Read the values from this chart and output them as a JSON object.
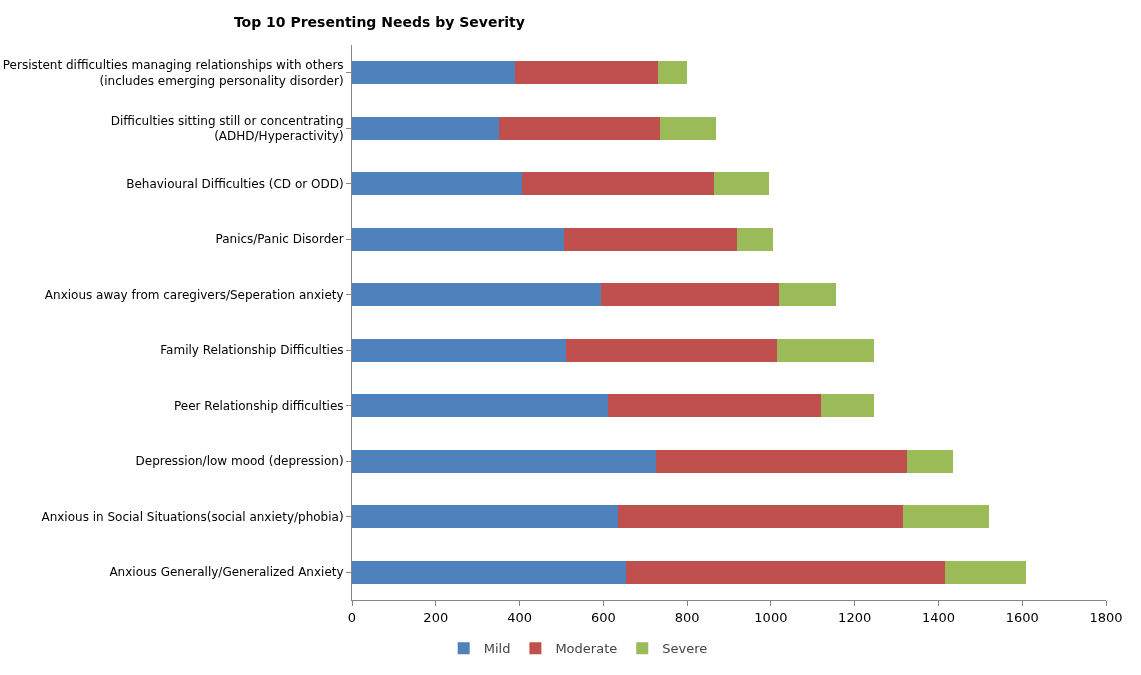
{
  "chart_data": {
    "type": "bar",
    "orientation": "horizontal",
    "stacked": true,
    "title": "Top 10 Presenting Needs by Severity",
    "categories": [
      "Persistent difficulties managing relationships with others\n(includes emerging personality disorder)",
      "Difficulties sitting still or concentrating\n(ADHD/Hyperactivity)",
      "Behavioural Difficulties (CD or ODD)",
      "Panics/Panic Disorder",
      "Anxious away from caregivers/Seperation anxiety",
      "Family Relationship Difficulties",
      "Peer Relationship difficulties",
      "Depression/low mood (depression)",
      "Anxious in Social Situations(social anxiety/phobia)",
      "Anxious Generally/Generalized Anxiety"
    ],
    "series": [
      {
        "name": "Mild",
        "color": "#4f81bd",
        "values": [
          390,
          350,
          405,
          505,
          595,
          510,
          610,
          725,
          635,
          655
        ]
      },
      {
        "name": "Moderate",
        "color": "#c0504d",
        "values": [
          340,
          385,
          460,
          415,
          425,
          505,
          510,
          600,
          680,
          760
        ]
      },
      {
        "name": "Severe",
        "color": "#9bbb59",
        "values": [
          70,
          135,
          130,
          85,
          135,
          230,
          125,
          110,
          205,
          195
        ]
      }
    ],
    "xlim": [
      0,
      1800
    ],
    "xticks": [
      0,
      200,
      400,
      600,
      800,
      1000,
      1200,
      1400,
      1600,
      1800
    ],
    "grid": false,
    "legend": "bottom"
  }
}
